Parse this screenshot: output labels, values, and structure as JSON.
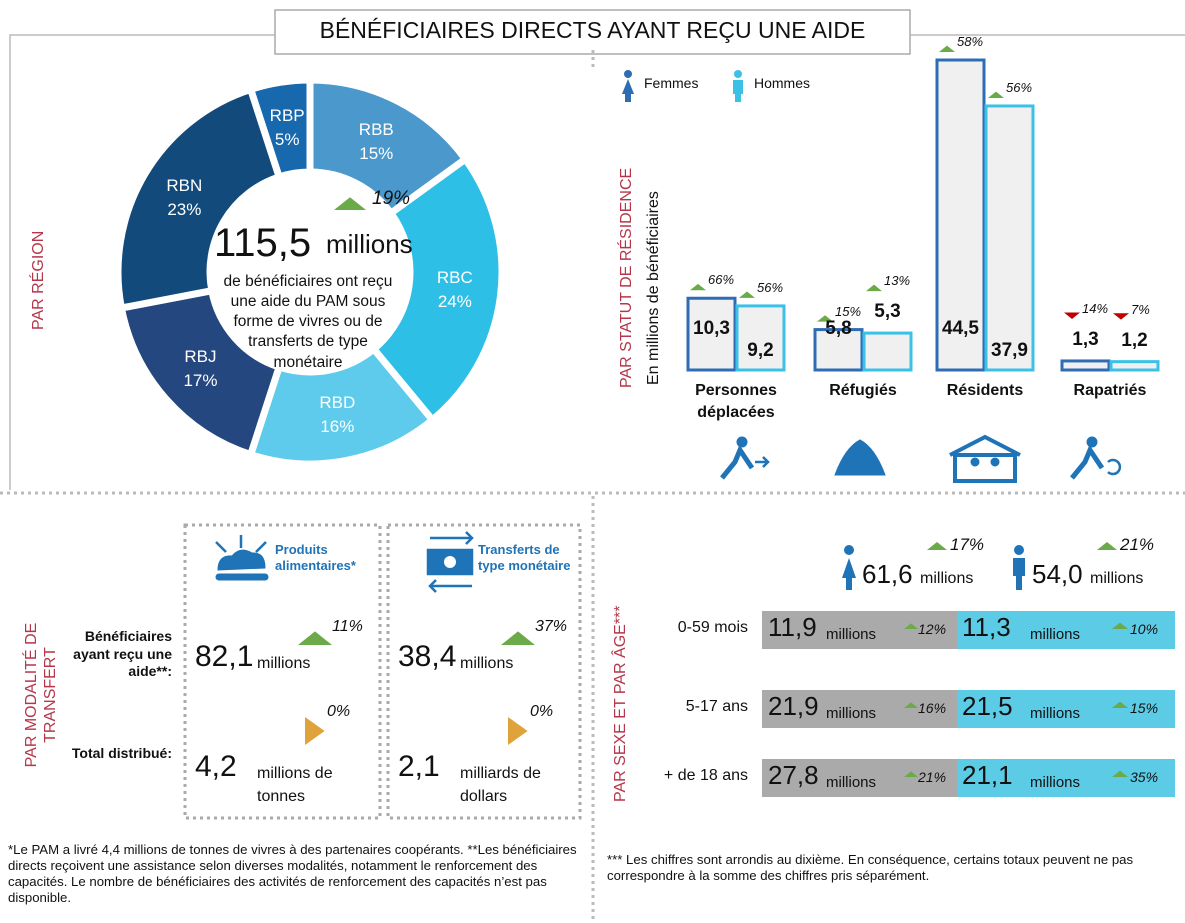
{
  "title": "BÉNÉFICIAIRES DIRECTS AYANT REÇU UNE AIDE",
  "region": {
    "section_label": "PAR RÉGION",
    "type": "pie",
    "categories": [
      "RBP",
      "RBB",
      "RBC",
      "RBD",
      "RBJ",
      "RBN"
    ],
    "values": [
      5,
      15,
      24,
      16,
      17,
      23
    ],
    "value_labels": [
      "5%",
      "15%",
      "24%",
      "16%",
      "17%",
      "23%"
    ],
    "colors": [
      "#1768ad",
      "#4b98cd",
      "#2dbfe5",
      "#5ecbec",
      "#24477f",
      "#134a7c"
    ],
    "center": {
      "change": "19%",
      "trend": "up",
      "total": "115,5",
      "unit": "millions",
      "text": "de bénéficiaires ont reçu une aide du PAM sous forme de vivres ou de transferts de type monétaire"
    }
  },
  "residence": {
    "section_label": "PAR STATUT DE RÉSIDENCE",
    "ylabel": "En millions de bénéficiaires",
    "type": "bar",
    "categories": [
      "Personnes déplacées",
      "Réfugiés",
      "Résidents",
      "Rapatriés"
    ],
    "series": [
      {
        "name": "Femmes",
        "color": "#2e6db4",
        "values": [
          10.3,
          5.8,
          44.5,
          1.3
        ],
        "value_labels": [
          "10,3",
          "5,8",
          "44,5",
          "1,3"
        ],
        "changes": [
          "66%",
          "15%",
          "58%",
          "14%"
        ],
        "trends": [
          "up",
          "up",
          "up",
          "down"
        ]
      },
      {
        "name": "Hommes",
        "color": "#3bc1e6",
        "values": [
          9.2,
          5.3,
          37.9,
          1.2
        ],
        "value_labels": [
          "9,2",
          "5,3",
          "37,9",
          "1,2"
        ],
        "changes": [
          "56%",
          "13%",
          "56%",
          "7%"
        ],
        "trends": [
          "up",
          "up",
          "up",
          "down"
        ]
      }
    ]
  },
  "transfer": {
    "section_label": "PAR MODALITÉ DE TRANSFERT",
    "row_labels": [
      "Bénéficiaires ayant reçu une aide**:",
      "Total distribué:"
    ],
    "columns": [
      {
        "title": "Produits alimentaires*",
        "rows": [
          {
            "value": "82,1",
            "unit": "millions",
            "change": "11%",
            "trend": "up"
          },
          {
            "value": "4,2",
            "unit": "millions de tonnes",
            "change": "0%",
            "trend": "flat"
          }
        ]
      },
      {
        "title": "Transferts de type monétaire",
        "rows": [
          {
            "value": "38,4",
            "unit": "millions",
            "change": "37%",
            "trend": "up"
          },
          {
            "value": "2,1",
            "unit": "milliards de dollars",
            "change": "0%",
            "trend": "flat"
          }
        ]
      }
    ]
  },
  "sex_age": {
    "section_label": "PAR SEXE ET PAR ÂGE***",
    "unit": "millions",
    "totals": [
      {
        "value": "61,6",
        "change": "17%",
        "trend": "up"
      },
      {
        "value": "54,0",
        "change": "21%",
        "trend": "up"
      }
    ],
    "rows": [
      {
        "label": "0-59 mois",
        "women": "11,9",
        "women_change": "12%",
        "men": "11,3",
        "men_change": "10%"
      },
      {
        "label": "5-17 ans",
        "women": "21,9",
        "women_change": "16%",
        "men": "21,5",
        "men_change": "15%"
      },
      {
        "label": "+ de 18 ans",
        "women": "27,8",
        "women_change": "21%",
        "men": "21,1",
        "men_change": "35%"
      }
    ]
  },
  "footnotes": [
    "*Le PAM a livré 4,4 millions de tonnes de vivres à des partenaires coopérants. **Les bénéficiaires directs reçoivent une assistance selon diverses modalités, notamment le renforcement des capacités. Le nombre de bénéficiaires des activités de renforcement des capacités n’est pas disponible.",
    "*** Les chiffres sont arrondis au dixième. En conséquence, certains totaux peuvent ne pas correspondre à la somme des chiffres pris séparément."
  ]
}
